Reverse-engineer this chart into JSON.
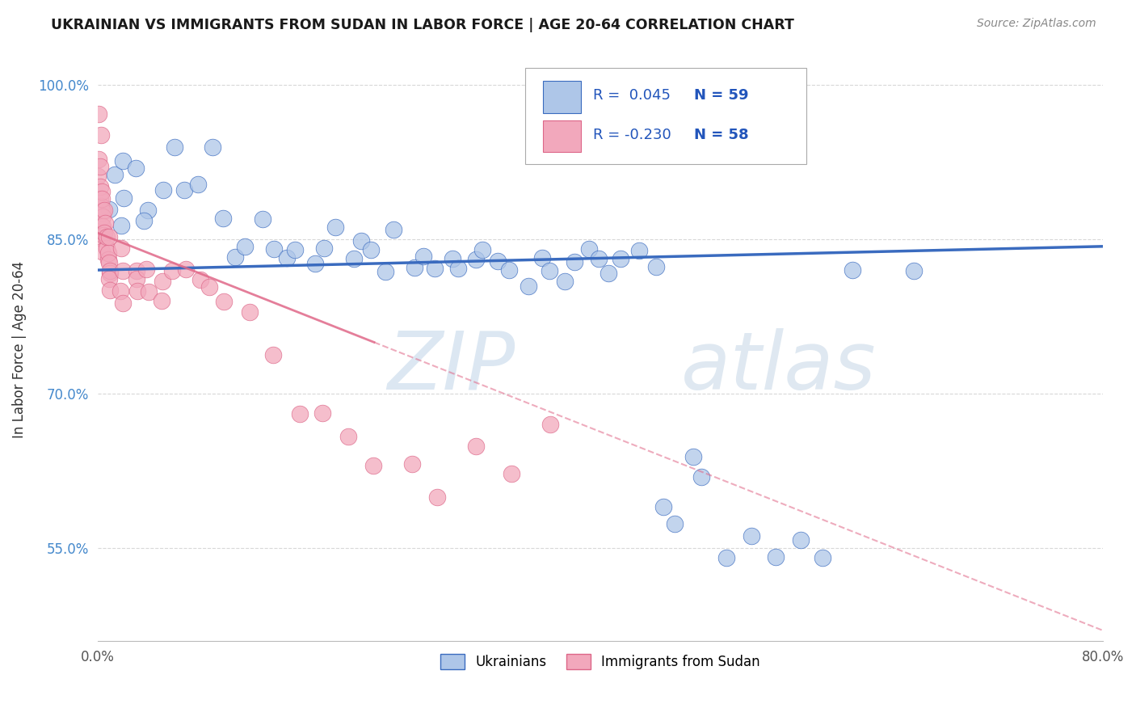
{
  "title": "UKRAINIAN VS IMMIGRANTS FROM SUDAN IN LABOR FORCE | AGE 20-64 CORRELATION CHART",
  "source": "Source: ZipAtlas.com",
  "ylabel": "In Labor Force | Age 20-64",
  "watermark_zip": "ZIP",
  "watermark_atlas": "atlas",
  "legend_blue_r": "0.045",
  "legend_blue_n": "59",
  "legend_pink_r": "-0.230",
  "legend_pink_n": "58",
  "legend_label1": "Ukrainians",
  "legend_label2": "Immigrants from Sudan",
  "xlim": [
    0.0,
    0.8
  ],
  "ylim": [
    0.46,
    1.025
  ],
  "yticks": [
    0.55,
    0.7,
    0.85,
    1.0
  ],
  "ytick_labels": [
    "55.0%",
    "70.0%",
    "85.0%",
    "100.0%"
  ],
  "xticks": [
    0.0,
    0.2,
    0.4,
    0.6,
    0.8
  ],
  "xtick_labels": [
    "0.0%",
    "",
    "",
    "",
    "80.0%"
  ],
  "blue_color": "#aec6e8",
  "pink_color": "#f2a8bc",
  "trend_blue_color": "#3a6bbf",
  "trend_pink_color": "#e06888",
  "background": "#ffffff",
  "grid_color": "#d8d8d8",
  "blue_scatter_x": [
    0.01,
    0.01,
    0.02,
    0.02,
    0.02,
    0.03,
    0.04,
    0.04,
    0.05,
    0.06,
    0.07,
    0.08,
    0.09,
    0.1,
    0.11,
    0.12,
    0.13,
    0.14,
    0.15,
    0.16,
    0.17,
    0.18,
    0.19,
    0.2,
    0.21,
    0.22,
    0.23,
    0.24,
    0.25,
    0.26,
    0.27,
    0.28,
    0.29,
    0.3,
    0.31,
    0.32,
    0.33,
    0.34,
    0.35,
    0.36,
    0.37,
    0.38,
    0.39,
    0.4,
    0.41,
    0.42,
    0.43,
    0.44,
    0.45,
    0.46,
    0.47,
    0.48,
    0.5,
    0.52,
    0.54,
    0.56,
    0.58,
    0.6,
    0.65
  ],
  "blue_scatter_y": [
    0.91,
    0.88,
    0.93,
    0.89,
    0.86,
    0.92,
    0.88,
    0.87,
    0.9,
    0.94,
    0.9,
    0.9,
    0.94,
    0.87,
    0.83,
    0.84,
    0.87,
    0.84,
    0.83,
    0.84,
    0.83,
    0.84,
    0.86,
    0.83,
    0.85,
    0.84,
    0.82,
    0.86,
    0.82,
    0.83,
    0.82,
    0.83,
    0.82,
    0.83,
    0.84,
    0.83,
    0.82,
    0.8,
    0.83,
    0.82,
    0.81,
    0.83,
    0.84,
    0.83,
    0.82,
    0.83,
    0.84,
    0.82,
    0.59,
    0.57,
    0.64,
    0.62,
    0.54,
    0.56,
    0.54,
    0.56,
    0.54,
    0.82,
    0.82
  ],
  "pink_scatter_x": [
    0.001,
    0.001,
    0.001,
    0.001,
    0.001,
    0.002,
    0.002,
    0.002,
    0.002,
    0.003,
    0.003,
    0.003,
    0.004,
    0.004,
    0.004,
    0.005,
    0.005,
    0.005,
    0.006,
    0.006,
    0.007,
    0.007,
    0.008,
    0.008,
    0.009,
    0.01,
    0.01,
    0.01,
    0.01,
    0.01,
    0.01,
    0.02,
    0.02,
    0.02,
    0.02,
    0.03,
    0.03,
    0.03,
    0.04,
    0.04,
    0.05,
    0.05,
    0.06,
    0.07,
    0.08,
    0.09,
    0.1,
    0.12,
    0.14,
    0.16,
    0.18,
    0.2,
    0.22,
    0.25,
    0.27,
    0.3,
    0.33,
    0.36
  ],
  "pink_scatter_y": [
    0.97,
    0.95,
    0.93,
    0.91,
    0.89,
    0.92,
    0.9,
    0.88,
    0.86,
    0.9,
    0.88,
    0.86,
    0.89,
    0.87,
    0.85,
    0.88,
    0.86,
    0.84,
    0.87,
    0.85,
    0.86,
    0.84,
    0.85,
    0.83,
    0.84,
    0.85,
    0.83,
    0.82,
    0.82,
    0.81,
    0.8,
    0.84,
    0.82,
    0.8,
    0.79,
    0.82,
    0.81,
    0.8,
    0.82,
    0.8,
    0.81,
    0.79,
    0.82,
    0.82,
    0.81,
    0.8,
    0.79,
    0.78,
    0.74,
    0.68,
    0.68,
    0.66,
    0.63,
    0.63,
    0.6,
    0.65,
    0.62,
    0.67
  ]
}
